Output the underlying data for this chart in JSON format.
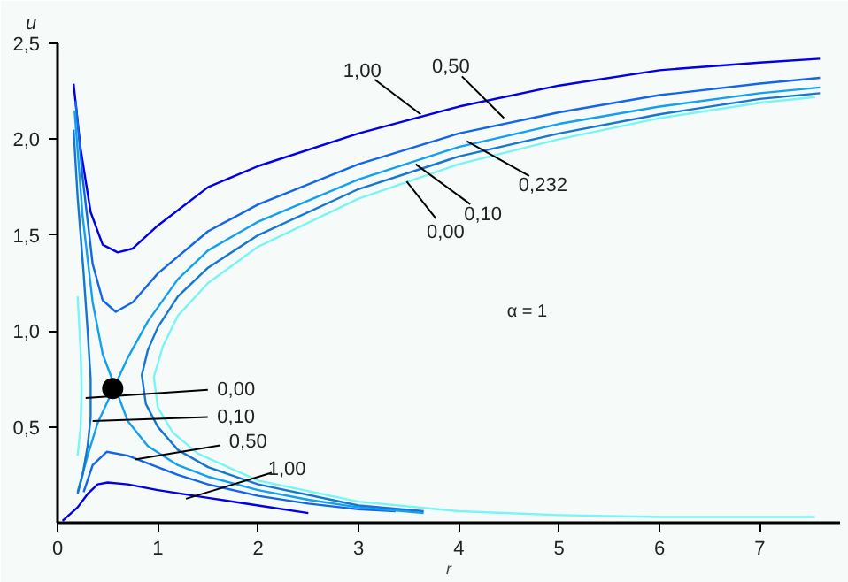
{
  "chart_data": {
    "type": "line",
    "xlabel": "r",
    "ylabel": "u",
    "xlim": [
      0,
      7.8
    ],
    "ylim": [
      0,
      2.5
    ],
    "xticks": [
      0,
      1,
      2,
      3,
      4,
      5,
      6,
      7
    ],
    "yticks": [
      {
        "value": 0.5,
        "label": "0,5"
      },
      {
        "value": 1.0,
        "label": "1,0"
      },
      {
        "value": 1.5,
        "label": "1,5"
      },
      {
        "value": 2.0,
        "label": "2,0"
      },
      {
        "value": 2.5,
        "label": "2,5"
      }
    ],
    "grid": false,
    "marker": "none",
    "line_style": "solid",
    "series": [
      {
        "color": "#0000e6",
        "x": [
          0.16,
          0.23,
          0.33,
          0.45,
          0.6,
          0.75,
          1.0,
          1.5,
          2.0,
          3.0,
          4.0,
          5.0,
          6.0,
          7.0,
          7.6
        ],
        "values": [
          2.29,
          1.95,
          1.62,
          1.45,
          1.41,
          1.43,
          1.55,
          1.75,
          1.86,
          2.03,
          2.17,
          2.28,
          2.36,
          2.4,
          2.42
        ]
      },
      {
        "color": "#0000e6",
        "x": [
          0.05,
          0.2,
          0.3,
          0.4,
          0.5,
          0.7,
          1.0,
          1.5,
          2.0,
          2.5
        ],
        "values": [
          0.01,
          0.08,
          0.15,
          0.2,
          0.21,
          0.2,
          0.17,
          0.13,
          0.09,
          0.05
        ]
      },
      {
        "color": "#1466e8",
        "x": [
          0.18,
          0.25,
          0.35,
          0.45,
          0.58,
          0.75,
          1.0,
          1.5,
          2.0,
          3.0,
          4.0,
          5.0,
          6.0,
          7.0,
          7.6
        ],
        "values": [
          2.2,
          1.8,
          1.35,
          1.16,
          1.1,
          1.15,
          1.3,
          1.52,
          1.66,
          1.87,
          2.03,
          2.14,
          2.23,
          2.29,
          2.32
        ]
      },
      {
        "color": "#1466e8",
        "x": [
          0.26,
          0.35,
          0.49,
          0.7,
          0.9,
          1.2,
          1.5,
          2.0,
          2.5,
          3.0,
          3.37
        ],
        "values": [
          0.16,
          0.3,
          0.37,
          0.35,
          0.31,
          0.25,
          0.2,
          0.14,
          0.1,
          0.07,
          0.06
        ]
      },
      {
        "color": "#14a0f0",
        "x": [
          0.2,
          0.3,
          0.4,
          0.7,
          0.9,
          1.2,
          1.5,
          2.0,
          3.0,
          4.0,
          5.0,
          6.0,
          7.0,
          7.6
        ],
        "values": [
          0.16,
          0.35,
          0.52,
          0.86,
          1.05,
          1.27,
          1.42,
          1.57,
          1.79,
          1.96,
          2.08,
          2.17,
          2.24,
          2.27
        ]
      },
      {
        "color": "#14a0f0",
        "x": [
          0.17,
          0.25,
          0.35,
          0.45,
          0.7,
          0.9,
          1.2,
          1.5,
          2.0,
          2.5,
          3.0,
          3.65
        ],
        "values": [
          2.15,
          1.6,
          1.15,
          0.88,
          0.53,
          0.4,
          0.3,
          0.24,
          0.17,
          0.12,
          0.08,
          0.05
        ]
      },
      {
        "color": "#1478d2",
        "x": [
          0.16,
          0.2,
          0.26,
          0.3,
          0.33,
          0.33,
          0.3,
          0.25,
          0.2
        ],
        "values": [
          2.05,
          1.7,
          1.3,
          1.0,
          0.75,
          0.55,
          0.4,
          0.25,
          0.15
        ]
      },
      {
        "color": "#1478d2",
        "x": [
          7.6,
          7.0,
          6.0,
          5.0,
          4.0,
          3.0,
          2.0,
          1.5,
          1.2,
          1.0,
          0.9,
          0.84,
          0.88,
          1.0,
          1.2,
          1.5,
          2.0,
          3.0,
          3.65
        ],
        "values": [
          2.24,
          2.21,
          2.13,
          2.03,
          1.91,
          1.74,
          1.5,
          1.33,
          1.18,
          1.02,
          0.9,
          0.77,
          0.62,
          0.5,
          0.38,
          0.29,
          0.2,
          0.09,
          0.06
        ]
      },
      {
        "color": "#78f5f5",
        "x": [
          0.2,
          0.23,
          0.24,
          0.23,
          0.2
        ],
        "values": [
          1.18,
          0.9,
          0.7,
          0.5,
          0.35
        ]
      },
      {
        "color": "#78f5f5",
        "x": [
          7.55,
          7.0,
          6.0,
          5.0,
          4.0,
          3.0,
          2.0,
          1.5,
          1.2,
          1.05,
          0.96,
          1.0,
          1.15,
          1.4,
          2.0,
          3.0,
          4.0,
          5.0,
          6.0,
          7.55
        ],
        "values": [
          2.22,
          2.19,
          2.11,
          2.0,
          1.87,
          1.69,
          1.44,
          1.25,
          1.08,
          0.92,
          0.76,
          0.6,
          0.47,
          0.36,
          0.22,
          0.11,
          0.06,
          0.04,
          0.03,
          0.03
        ]
      },
      {
        "type": "scatter",
        "marker": "circle",
        "color": "#000000",
        "x": [
          0.55
        ],
        "values": [
          0.7
        ]
      }
    ],
    "annotations": [
      {
        "text": "1,00",
        "x": 3.62,
        "y": 2.13
      },
      {
        "text": "0,50",
        "x": 4.45,
        "y": 2.11
      },
      {
        "text": "0,232",
        "x": 4.08,
        "y": 1.99
      },
      {
        "text": "0,10",
        "x": 3.57,
        "y": 1.87
      },
      {
        "text": "0,00",
        "x": 3.48,
        "y": 1.78
      },
      {
        "text": "0,00",
        "x": 0.28,
        "y": 0.65
      },
      {
        "text": "0,10",
        "x": 0.35,
        "y": 0.53
      },
      {
        "text": "0,50",
        "x": 0.77,
        "y": 0.33
      },
      {
        "text": "1,00",
        "x": 1.28,
        "y": 0.125
      },
      "α = 1"
    ]
  }
}
